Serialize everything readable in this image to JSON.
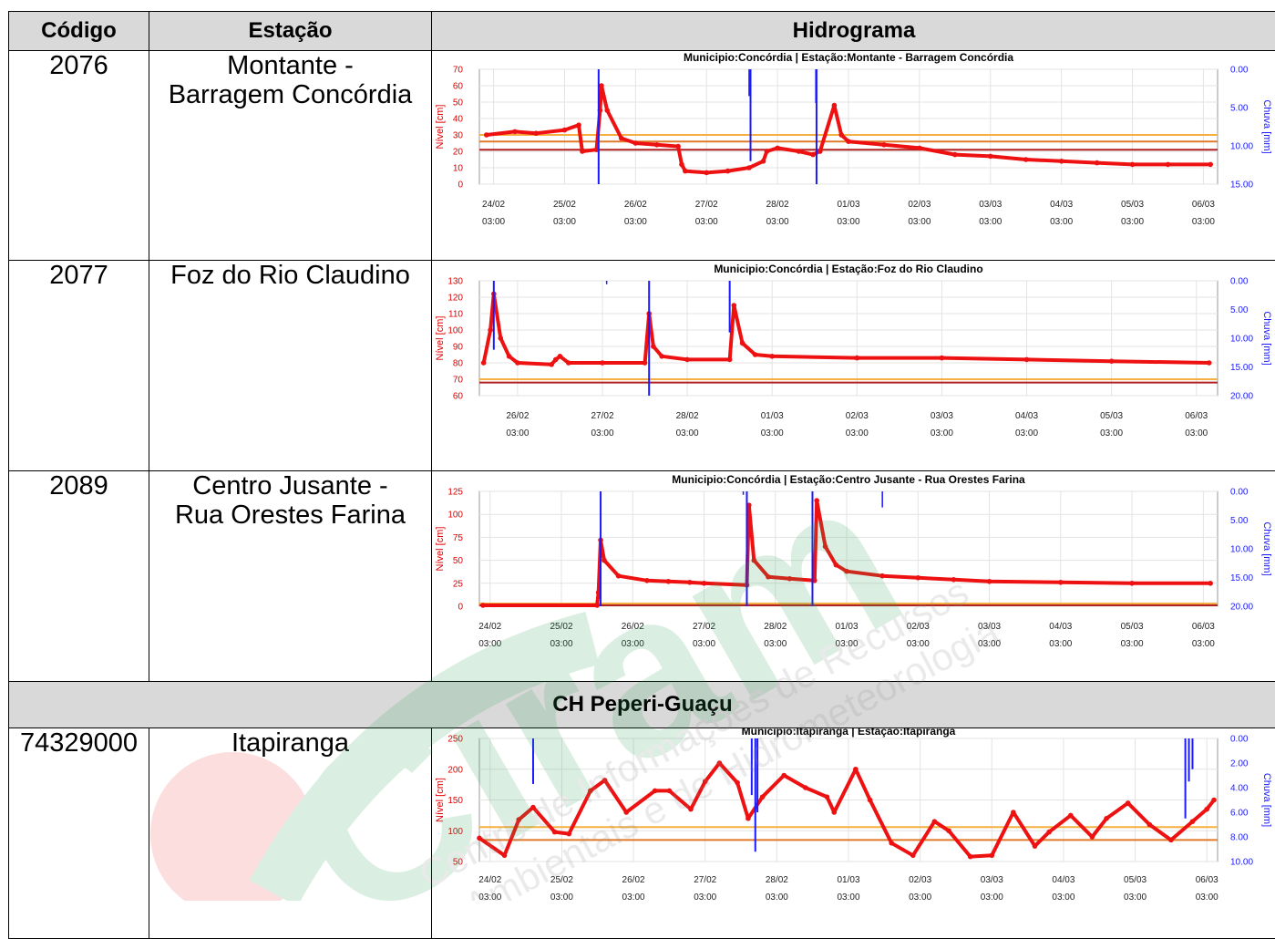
{
  "table": {
    "headers": {
      "code": "Código",
      "station": "Estação",
      "chart": "Hidrograma"
    },
    "section_title": "CH Peperi-Guaçu",
    "rows": [
      {
        "code": "2076",
        "name_line1": "Montante -",
        "name_line2": "Barragem Concórdia"
      },
      {
        "code": "2077",
        "name_line1": "Foz do Rio Claudino",
        "name_line2": ""
      },
      {
        "code": "2089",
        "name_line1": "Centro Jusante -",
        "name_line2": "Rua Orestes Farina"
      },
      {
        "code": "74329000",
        "name_line1": "Itapiranga",
        "name_line2": ""
      }
    ]
  },
  "watermark": {
    "brand": "Ciram",
    "tagline_1": "Centro de Informações de Recursos",
    "tagline_2": "Ambientais e de Hidrometeorologia"
  },
  "chart_data": [
    {
      "type": "line",
      "title": "Municipio:Concórdia | Estação:Montante - Barragem Concórdia",
      "ylabel": "Nível [cm]",
      "y2label": "Chuva [mm]",
      "ylim": [
        0,
        70
      ],
      "yticks": [
        "0",
        "10",
        "20",
        "30",
        "40",
        "50",
        "60",
        "70"
      ],
      "y2lim": [
        0,
        15
      ],
      "y2ticks": [
        "0.00",
        "5.00",
        "10.00",
        "15.00"
      ],
      "xlim": [
        -0.2,
        10.2
      ],
      "xticks": [
        {
          "x": 0,
          "d": "24/02",
          "t": "03:00"
        },
        {
          "x": 1,
          "d": "25/02",
          "t": "03:00"
        },
        {
          "x": 2,
          "d": "26/02",
          "t": "03:00"
        },
        {
          "x": 3,
          "d": "27/02",
          "t": "03:00"
        },
        {
          "x": 4,
          "d": "28/02",
          "t": "03:00"
        },
        {
          "x": 5,
          "d": "01/03",
          "t": "03:00"
        },
        {
          "x": 6,
          "d": "02/03",
          "t": "03:00"
        },
        {
          "x": 7,
          "d": "03/03",
          "t": "03:00"
        },
        {
          "x": 8,
          "d": "04/03",
          "t": "03:00"
        },
        {
          "x": 9,
          "d": "05/03",
          "t": "03:00"
        },
        {
          "x": 10,
          "d": "06/03",
          "t": "03:00"
        }
      ],
      "thresholds": [
        {
          "value": 30,
          "color": "#f5b041"
        },
        {
          "value": 26,
          "color": "#e07a2a"
        },
        {
          "value": 21,
          "color": "#b22222"
        }
      ],
      "level": [
        [
          -0.1,
          30
        ],
        [
          0.3,
          32
        ],
        [
          0.6,
          31
        ],
        [
          1.0,
          33
        ],
        [
          1.2,
          36
        ],
        [
          1.25,
          20
        ],
        [
          1.45,
          21
        ],
        [
          1.5,
          45
        ],
        [
          1.52,
          60
        ],
        [
          1.6,
          45
        ],
        [
          1.8,
          28
        ],
        [
          2.0,
          25
        ],
        [
          2.3,
          24
        ],
        [
          2.6,
          23
        ],
        [
          2.65,
          12
        ],
        [
          2.7,
          8
        ],
        [
          3.0,
          7
        ],
        [
          3.3,
          8
        ],
        [
          3.6,
          10
        ],
        [
          3.8,
          14
        ],
        [
          3.85,
          20
        ],
        [
          4.0,
          22
        ],
        [
          4.3,
          20
        ],
        [
          4.5,
          18
        ],
        [
          4.6,
          20
        ],
        [
          4.8,
          48
        ],
        [
          4.9,
          30
        ],
        [
          5.0,
          26
        ],
        [
          5.5,
          24
        ],
        [
          6.0,
          22
        ],
        [
          6.5,
          18
        ],
        [
          7.0,
          17
        ],
        [
          7.5,
          15
        ],
        [
          8.0,
          14
        ],
        [
          8.5,
          13
        ],
        [
          9.0,
          12
        ],
        [
          9.5,
          12
        ],
        [
          10.1,
          12
        ]
      ],
      "rain_bars": [
        [
          1.48,
          15
        ],
        [
          3.62,
          12
        ],
        [
          4.55,
          15
        ]
      ],
      "rain_spikes": [
        [
          3.6,
          3.5
        ],
        [
          4.54,
          4.4
        ]
      ]
    },
    {
      "type": "line",
      "title": "Municipio:Concórdia | Estação:Foz do Rio Claudino",
      "ylabel": "Nível [cm]",
      "y2label": "Chuva [mm]",
      "ylim": [
        60,
        130
      ],
      "yticks": [
        "60",
        "70",
        "80",
        "90",
        "100",
        "110",
        "120",
        "130"
      ],
      "y2lim": [
        0,
        20
      ],
      "y2ticks": [
        "0.00",
        "5.00",
        "10.00",
        "15.00",
        "20.00"
      ],
      "xlim": [
        -0.45,
        8.25
      ],
      "xticks": [
        {
          "x": 0,
          "d": "26/02",
          "t": "03:00"
        },
        {
          "x": 1,
          "d": "27/02",
          "t": "03:00"
        },
        {
          "x": 2,
          "d": "28/02",
          "t": "03:00"
        },
        {
          "x": 3,
          "d": "01/03",
          "t": "03:00"
        },
        {
          "x": 4,
          "d": "02/03",
          "t": "03:00"
        },
        {
          "x": 5,
          "d": "03/03",
          "t": "03:00"
        },
        {
          "x": 6,
          "d": "04/03",
          "t": "03:00"
        },
        {
          "x": 7,
          "d": "05/03",
          "t": "03:00"
        },
        {
          "x": 8,
          "d": "06/03",
          "t": "03:00"
        }
      ],
      "thresholds": [
        {
          "value": 70,
          "color": "#f5b041"
        },
        {
          "value": 68,
          "color": "#b22222"
        }
      ],
      "level": [
        [
          -0.4,
          80
        ],
        [
          -0.32,
          100
        ],
        [
          -0.28,
          122
        ],
        [
          -0.2,
          95
        ],
        [
          -0.1,
          84
        ],
        [
          0.0,
          80
        ],
        [
          0.4,
          79
        ],
        [
          0.45,
          82
        ],
        [
          0.5,
          84
        ],
        [
          0.6,
          80
        ],
        [
          1.0,
          80
        ],
        [
          1.5,
          80
        ],
        [
          1.55,
          110
        ],
        [
          1.6,
          90
        ],
        [
          1.7,
          84
        ],
        [
          2.0,
          82
        ],
        [
          2.5,
          82
        ],
        [
          2.55,
          115
        ],
        [
          2.65,
          92
        ],
        [
          2.8,
          85
        ],
        [
          3.0,
          84
        ],
        [
          4.0,
          83
        ],
        [
          5.0,
          83
        ],
        [
          6.0,
          82
        ],
        [
          7.0,
          81
        ],
        [
          8.15,
          80
        ]
      ],
      "rain_bars": [
        [
          -0.28,
          12
        ],
        [
          1.55,
          20
        ],
        [
          2.5,
          9
        ]
      ],
      "rain_spikes": [
        [
          1.05,
          0.6
        ]
      ]
    },
    {
      "type": "line",
      "title": "Municipio:Concórdia | Estação:Centro Jusante - Rua Orestes Farina",
      "ylabel": "Nível [cm]",
      "y2label": "Chuva [mm]",
      "ylim": [
        0,
        125
      ],
      "yticks": [
        "0",
        "25",
        "50",
        "75",
        "100",
        "125"
      ],
      "y2lim": [
        0,
        20
      ],
      "y2ticks": [
        "0.00",
        "5.00",
        "10.00",
        "15.00",
        "20.00"
      ],
      "xlim": [
        -0.15,
        10.2
      ],
      "xticks": [
        {
          "x": 0,
          "d": "24/02",
          "t": "03:00"
        },
        {
          "x": 1,
          "d": "25/02",
          "t": "03:00"
        },
        {
          "x": 2,
          "d": "26/02",
          "t": "03:00"
        },
        {
          "x": 3,
          "d": "27/02",
          "t": "03:00"
        },
        {
          "x": 4,
          "d": "28/02",
          "t": "03:00"
        },
        {
          "x": 5,
          "d": "01/03",
          "t": "03:00"
        },
        {
          "x": 6,
          "d": "02/03",
          "t": "03:00"
        },
        {
          "x": 7,
          "d": "03/03",
          "t": "03:00"
        },
        {
          "x": 8,
          "d": "04/03",
          "t": "03:00"
        },
        {
          "x": 9,
          "d": "05/03",
          "t": "03:00"
        },
        {
          "x": 10,
          "d": "06/03",
          "t": "03:00"
        }
      ],
      "thresholds": [
        {
          "value": 3,
          "color": "#f5b041"
        },
        {
          "value": 1,
          "color": "#b22222"
        }
      ],
      "level": [
        [
          -0.1,
          1
        ],
        [
          1.5,
          1
        ],
        [
          1.52,
          15
        ],
        [
          1.55,
          72
        ],
        [
          1.6,
          50
        ],
        [
          1.8,
          33
        ],
        [
          2.2,
          28
        ],
        [
          2.5,
          27
        ],
        [
          2.8,
          26
        ],
        [
          3.0,
          25
        ],
        [
          3.6,
          23
        ],
        [
          3.63,
          110
        ],
        [
          3.7,
          50
        ],
        [
          3.9,
          32
        ],
        [
          4.2,
          30
        ],
        [
          4.55,
          28
        ],
        [
          4.58,
          115
        ],
        [
          4.7,
          65
        ],
        [
          4.85,
          45
        ],
        [
          5.0,
          38
        ],
        [
          5.5,
          33
        ],
        [
          6.0,
          31
        ],
        [
          6.5,
          29
        ],
        [
          7.0,
          27
        ],
        [
          8.0,
          26
        ],
        [
          9.0,
          25
        ],
        [
          10.1,
          25
        ]
      ],
      "rain_bars": [
        [
          1.55,
          20
        ],
        [
          3.6,
          20
        ],
        [
          4.52,
          20
        ]
      ],
      "rain_spikes": [
        [
          5.5,
          2.8
        ],
        [
          3.55,
          0.6
        ]
      ]
    },
    {
      "type": "line",
      "title": "Municipio:Itapiranga | Estação:Itapiranga",
      "ylabel": "Nível [cm]",
      "y2label": "Chuva [mm]",
      "ylim": [
        50,
        250
      ],
      "yticks": [
        "50",
        "100",
        "150",
        "200",
        "250"
      ],
      "y2lim": [
        0,
        10
      ],
      "y2ticks": [
        "0.00",
        "2.00",
        "4.00",
        "6.00",
        "8.00",
        "10.00"
      ],
      "xlim": [
        -0.15,
        10.15
      ],
      "xticks": [
        {
          "x": 0,
          "d": "24/02",
          "t": "03:00"
        },
        {
          "x": 1,
          "d": "25/02",
          "t": "03:00"
        },
        {
          "x": 2,
          "d": "26/02",
          "t": "03:00"
        },
        {
          "x": 3,
          "d": "27/02",
          "t": "03:00"
        },
        {
          "x": 4,
          "d": "28/02",
          "t": "03:00"
        },
        {
          "x": 5,
          "d": "01/03",
          "t": "03:00"
        },
        {
          "x": 6,
          "d": "02/03",
          "t": "03:00"
        },
        {
          "x": 7,
          "d": "03/03",
          "t": "03:00"
        },
        {
          "x": 8,
          "d": "04/03",
          "t": "03:00"
        },
        {
          "x": 9,
          "d": "05/03",
          "t": "03:00"
        },
        {
          "x": 10,
          "d": "06/03",
          "t": "03:00"
        }
      ],
      "thresholds": [
        {
          "value": 106,
          "color": "#f5b041"
        },
        {
          "value": 85,
          "color": "#e07a2a"
        }
      ],
      "level": [
        [
          -0.15,
          88
        ],
        [
          0.2,
          60
        ],
        [
          0.4,
          118
        ],
        [
          0.6,
          138
        ],
        [
          0.9,
          98
        ],
        [
          1.1,
          95
        ],
        [
          1.4,
          165
        ],
        [
          1.6,
          182
        ],
        [
          1.9,
          130
        ],
        [
          2.3,
          165
        ],
        [
          2.5,
          165
        ],
        [
          2.8,
          135
        ],
        [
          3.0,
          180
        ],
        [
          3.2,
          210
        ],
        [
          3.45,
          178
        ],
        [
          3.6,
          120
        ],
        [
          3.8,
          155
        ],
        [
          4.1,
          190
        ],
        [
          4.4,
          170
        ],
        [
          4.7,
          155
        ],
        [
          4.8,
          130
        ],
        [
          5.1,
          200
        ],
        [
          5.3,
          150
        ],
        [
          5.6,
          80
        ],
        [
          5.9,
          60
        ],
        [
          6.2,
          115
        ],
        [
          6.4,
          100
        ],
        [
          6.7,
          58
        ],
        [
          7.0,
          60
        ],
        [
          7.3,
          130
        ],
        [
          7.6,
          75
        ],
        [
          7.8,
          98
        ],
        [
          8.1,
          125
        ],
        [
          8.4,
          90
        ],
        [
          8.6,
          120
        ],
        [
          8.9,
          145
        ],
        [
          9.2,
          110
        ],
        [
          9.5,
          85
        ],
        [
          9.8,
          115
        ],
        [
          10.0,
          135
        ],
        [
          10.1,
          150
        ]
      ],
      "rain_bars": [
        [
          0.6,
          3.7
        ],
        [
          3.65,
          4.6
        ],
        [
          3.7,
          9.2
        ],
        [
          3.73,
          6.0
        ],
        [
          9.7,
          6.5
        ],
        [
          9.75,
          3.5
        ],
        [
          9.8,
          2.5
        ]
      ],
      "rain_spikes": []
    }
  ]
}
